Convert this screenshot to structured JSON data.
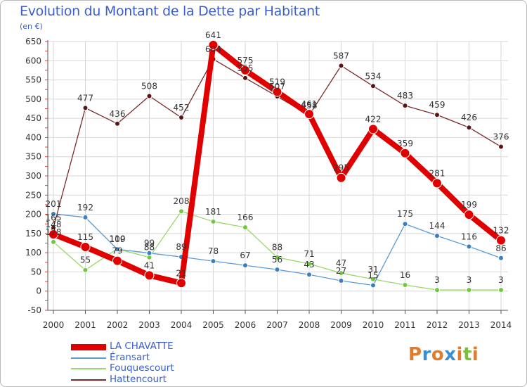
{
  "chart_data": {
    "type": "line",
    "title": "Evolution du Montant de la Dette par Habitant",
    "subtitle": "(en €)",
    "x": [
      "2000",
      "2001",
      "2002",
      "2003",
      "2004",
      "2005",
      "2006",
      "2007",
      "2008",
      "2009",
      "2010",
      "2011",
      "2012",
      "2013",
      "2014"
    ],
    "ylim": [
      -50,
      650
    ],
    "yticks": [
      -50,
      0,
      50,
      100,
      150,
      200,
      250,
      300,
      350,
      400,
      450,
      500,
      550,
      600,
      650
    ],
    "grid": true,
    "legend_position": "bottom-left",
    "series": [
      {
        "name": "LA CHAVATTE",
        "color": "#e00000",
        "values": [
          148,
          115,
          79,
          41,
          21,
          641,
          575,
          519,
          461,
          295,
          422,
          359,
          281,
          199,
          132
        ]
      },
      {
        "name": "Éransart",
        "color": "#5b9bd5",
        "values": [
          201,
          192,
          109,
          99,
          89,
          78,
          67,
          56,
          43,
          27,
          15,
          175,
          144,
          116,
          86
        ]
      },
      {
        "name": "Fouquescourt",
        "color": "#99d86a",
        "values": [
          128,
          55,
          110,
          88,
          208,
          181,
          166,
          88,
          71,
          47,
          31,
          16,
          3,
          3,
          3
        ]
      },
      {
        "name": "Hattencourt",
        "color": "#7b2c2c",
        "values": [
          165,
          477,
          436,
          508,
          452,
          604,
          555,
          507,
          458,
          587,
          534,
          483,
          459,
          426,
          376
        ]
      }
    ]
  },
  "logo": {
    "text": "Proxiti",
    "colors": [
      "#e07b2e",
      "#3b8fd1",
      "#e07b2e",
      "#3b8fd1",
      "#e07b2e",
      "#7cbf3a",
      "#e07b2e"
    ]
  }
}
